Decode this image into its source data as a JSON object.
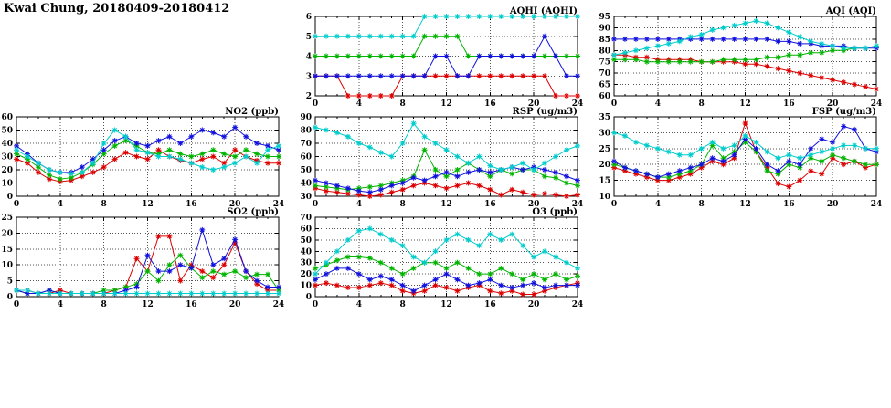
{
  "title": "Kwai Chung, 20180409-20180412",
  "x_interval_hours": 1,
  "chart_data": [
    {
      "type": "line",
      "title": "AQHI (AQHI)",
      "xlabel": "",
      "ylabel": "",
      "xlim": [
        0,
        24
      ],
      "xticks": [
        0,
        4,
        8,
        12,
        16,
        20,
        24
      ],
      "ylim": [
        2,
        6
      ],
      "yticks": [
        2,
        3,
        4,
        5,
        6
      ],
      "grid": true,
      "legend": "none",
      "position": {
        "row": 0,
        "col": 1
      },
      "series": [
        {
          "name": "red",
          "color": "#dd0000",
          "values": [
            3,
            3,
            3,
            2,
            2,
            2,
            2,
            2,
            3,
            3,
            3,
            3,
            3,
            3,
            3,
            3,
            3,
            3,
            3,
            3,
            3,
            3,
            2,
            2,
            2
          ]
        },
        {
          "name": "green",
          "color": "#00b400",
          "values": [
            4,
            4,
            4,
            4,
            4,
            4,
            4,
            4,
            4,
            4,
            5,
            5,
            5,
            5,
            4,
            4,
            4,
            4,
            4,
            4,
            4,
            4,
            4,
            4,
            4
          ]
        },
        {
          "name": "blue",
          "color": "#1111dd",
          "values": [
            3,
            3,
            3,
            3,
            3,
            3,
            3,
            3,
            3,
            3,
            3,
            4,
            4,
            3,
            3,
            4,
            4,
            4,
            4,
            4,
            4,
            5,
            4,
            3,
            3
          ]
        },
        {
          "name": "cyan",
          "color": "#00cccc",
          "values": [
            5,
            5,
            5,
            5,
            5,
            5,
            5,
            5,
            5,
            5,
            6,
            6,
            6,
            6,
            6,
            6,
            6,
            6,
            6,
            6,
            6,
            6,
            6,
            6,
            6
          ]
        }
      ]
    },
    {
      "type": "line",
      "title": "AQI (AQI)",
      "xlabel": "",
      "ylabel": "",
      "xlim": [
        0,
        24
      ],
      "xticks": [
        0,
        4,
        8,
        12,
        16,
        20,
        24
      ],
      "ylim": [
        60,
        95
      ],
      "yticks": [
        60,
        65,
        70,
        75,
        80,
        85,
        90,
        95
      ],
      "grid": true,
      "legend": "none",
      "position": {
        "row": 0,
        "col": 2
      },
      "series": [
        {
          "name": "red",
          "color": "#dd0000",
          "values": [
            78,
            78,
            77,
            77,
            76,
            76,
            76,
            76,
            75,
            75,
            75,
            75,
            74,
            74,
            73,
            72,
            71,
            70,
            69,
            68,
            67,
            66,
            65,
            64,
            63
          ]
        },
        {
          "name": "green",
          "color": "#00b400",
          "values": [
            76,
            76,
            76,
            75,
            75,
            75,
            75,
            75,
            75,
            75,
            76,
            76,
            76,
            76,
            77,
            77,
            78,
            78,
            79,
            79,
            80,
            80,
            81,
            81,
            82
          ]
        },
        {
          "name": "blue",
          "color": "#1111dd",
          "values": [
            85,
            85,
            85,
            85,
            85,
            85,
            85,
            85,
            85,
            85,
            85,
            85,
            85,
            85,
            85,
            84,
            84,
            83,
            83,
            82,
            82,
            82,
            81,
            81,
            81
          ]
        },
        {
          "name": "cyan",
          "color": "#00cccc",
          "values": [
            78,
            79,
            80,
            81,
            82,
            83,
            84,
            86,
            87,
            89,
            90,
            91,
            92,
            93,
            92,
            90,
            88,
            86,
            84,
            83,
            82,
            81,
            81,
            81,
            82
          ]
        }
      ]
    },
    {
      "type": "line",
      "title": "NO2 (ppb)",
      "xlabel": "",
      "ylabel": "",
      "xlim": [
        0,
        24
      ],
      "xticks": [
        0,
        4,
        8,
        12,
        16,
        20,
        24
      ],
      "ylim": [
        0,
        60
      ],
      "yticks": [
        0,
        10,
        20,
        30,
        40,
        50,
        60
      ],
      "grid": true,
      "legend": "none",
      "position": {
        "row": 1,
        "col": 0
      },
      "series": [
        {
          "name": "red",
          "color": "#dd0000",
          "values": [
            28,
            25,
            18,
            13,
            11,
            12,
            15,
            18,
            22,
            28,
            33,
            30,
            28,
            35,
            30,
            27,
            25,
            28,
            30,
            25,
            35,
            30,
            27,
            25,
            25
          ]
        },
        {
          "name": "green",
          "color": "#00b400",
          "values": [
            32,
            28,
            22,
            16,
            13,
            14,
            18,
            24,
            32,
            38,
            42,
            38,
            33,
            32,
            35,
            32,
            30,
            32,
            35,
            32,
            30,
            35,
            32,
            30,
            30
          ]
        },
        {
          "name": "blue",
          "color": "#1111dd",
          "values": [
            38,
            32,
            25,
            20,
            18,
            18,
            22,
            28,
            35,
            42,
            45,
            40,
            38,
            42,
            45,
            40,
            45,
            50,
            48,
            45,
            52,
            45,
            40,
            38,
            35
          ]
        },
        {
          "name": "cyan",
          "color": "#00cccc",
          "values": [
            35,
            30,
            25,
            20,
            18,
            17,
            18,
            25,
            40,
            50,
            45,
            35,
            33,
            30,
            30,
            28,
            25,
            22,
            20,
            22,
            25,
            30,
            25,
            35,
            38
          ]
        }
      ]
    },
    {
      "type": "line",
      "title": "RSP (ug/m3)",
      "xlabel": "",
      "ylabel": "",
      "xlim": [
        0,
        24
      ],
      "xticks": [
        0,
        4,
        8,
        12,
        16,
        20,
        24
      ],
      "ylim": [
        30,
        90
      ],
      "yticks": [
        30,
        40,
        50,
        60,
        70,
        80,
        90
      ],
      "grid": true,
      "legend": "none",
      "position": {
        "row": 1,
        "col": 1
      },
      "series": [
        {
          "name": "red",
          "color": "#dd0000",
          "values": [
            36,
            34,
            33,
            32,
            31,
            30,
            31,
            33,
            35,
            38,
            40,
            38,
            36,
            38,
            40,
            38,
            35,
            31,
            35,
            33,
            31,
            32,
            31,
            30,
            31
          ]
        },
        {
          "name": "green",
          "color": "#00b400",
          "values": [
            38,
            37,
            36,
            35,
            36,
            37,
            38,
            40,
            42,
            45,
            65,
            50,
            45,
            50,
            55,
            50,
            45,
            50,
            47,
            50,
            50,
            45,
            44,
            40,
            38
          ]
        },
        {
          "name": "blue",
          "color": "#1111dd",
          "values": [
            42,
            40,
            38,
            36,
            34,
            33,
            35,
            38,
            40,
            44,
            42,
            45,
            48,
            45,
            48,
            50,
            48,
            50,
            52,
            50,
            52,
            50,
            48,
            45,
            42
          ]
        },
        {
          "name": "cyan",
          "color": "#00cccc",
          "values": [
            82,
            80,
            78,
            75,
            70,
            67,
            63,
            60,
            70,
            85,
            75,
            70,
            65,
            60,
            55,
            60,
            53,
            50,
            52,
            55,
            50,
            55,
            60,
            65,
            68
          ]
        }
      ]
    },
    {
      "type": "line",
      "title": "FSP (ug/m3)",
      "xlabel": "",
      "ylabel": "",
      "xlim": [
        0,
        24
      ],
      "xticks": [
        0,
        4,
        8,
        12,
        16,
        20,
        24
      ],
      "ylim": [
        10,
        35
      ],
      "yticks": [
        10,
        15,
        20,
        25,
        30,
        35
      ],
      "grid": true,
      "legend": "none",
      "position": {
        "row": 1,
        "col": 2
      },
      "series": [
        {
          "name": "red",
          "color": "#dd0000",
          "values": [
            19,
            18,
            17,
            16,
            15,
            15,
            16,
            17,
            19,
            21,
            20,
            22,
            33,
            24,
            19,
            14,
            13,
            15,
            18,
            17,
            22,
            20,
            21,
            19,
            20
          ]
        },
        {
          "name": "green",
          "color": "#00b400",
          "values": [
            20,
            19,
            18,
            17,
            16,
            16,
            17,
            18,
            20,
            26,
            22,
            24,
            27,
            24,
            18,
            17,
            20,
            19,
            22,
            21,
            23,
            22,
            21,
            20,
            20
          ]
        },
        {
          "name": "blue",
          "color": "#1111dd",
          "values": [
            21,
            19,
            18,
            17,
            16,
            17,
            18,
            19,
            20,
            22,
            21,
            23,
            28,
            25,
            20,
            18,
            21,
            20,
            25,
            28,
            27,
            32,
            31,
            25,
            24
          ]
        },
        {
          "name": "cyan",
          "color": "#00cccc",
          "values": [
            30,
            29,
            27,
            26,
            25,
            24,
            23,
            23,
            25,
            27,
            25,
            26,
            29,
            27,
            24,
            22,
            23,
            22,
            23,
            24,
            25,
            26,
            26,
            25,
            25
          ]
        }
      ]
    },
    {
      "type": "line",
      "title": "SO2 (ppb)",
      "xlabel": "",
      "ylabel": "",
      "xlim": [
        0,
        24
      ],
      "xticks": [
        0,
        4,
        8,
        12,
        16,
        20,
        24
      ],
      "ylim": [
        0,
        25
      ],
      "yticks": [
        0,
        5,
        10,
        15,
        20,
        25
      ],
      "grid": true,
      "legend": "none",
      "position": {
        "row": 2,
        "col": 0
      },
      "series": [
        {
          "name": "red",
          "color": "#dd0000",
          "values": [
            2,
            2,
            1,
            1,
            2,
            1,
            1,
            1,
            1,
            2,
            3,
            12,
            8,
            19,
            19,
            5,
            10,
            8,
            6,
            10,
            17,
            8,
            4,
            2,
            2
          ]
        },
        {
          "name": "green",
          "color": "#00b400",
          "values": [
            2,
            1,
            1,
            2,
            1,
            1,
            1,
            1,
            2,
            2,
            3,
            4,
            8,
            5,
            10,
            13,
            9,
            6,
            8,
            7,
            8,
            6,
            7,
            7,
            2
          ]
        },
        {
          "name": "blue",
          "color": "#1111dd",
          "values": [
            2,
            1,
            1,
            2,
            1,
            1,
            1,
            1,
            1,
            1,
            2,
            3,
            13,
            8,
            8,
            10,
            9,
            21,
            10,
            12,
            18,
            8,
            5,
            3,
            3
          ]
        },
        {
          "name": "cyan",
          "color": "#00cccc",
          "values": [
            2,
            2,
            1,
            1,
            1,
            1,
            1,
            1,
            1,
            1,
            1,
            1,
            1,
            1,
            1,
            1,
            1,
            1,
            1,
            1,
            1,
            1,
            1,
            1,
            1
          ]
        }
      ]
    },
    {
      "type": "line",
      "title": "O3 (ppb)",
      "xlabel": "",
      "ylabel": "",
      "xlim": [
        0,
        24
      ],
      "xticks": [
        0,
        4,
        8,
        12,
        16,
        20,
        24
      ],
      "ylim": [
        0,
        70
      ],
      "yticks": [
        0,
        10,
        20,
        30,
        40,
        50,
        60,
        70
      ],
      "grid": true,
      "legend": "none",
      "position": {
        "row": 2,
        "col": 1
      },
      "series": [
        {
          "name": "red",
          "color": "#dd0000",
          "values": [
            10,
            12,
            10,
            8,
            8,
            10,
            12,
            10,
            5,
            3,
            5,
            10,
            8,
            5,
            8,
            10,
            5,
            3,
            5,
            2,
            2,
            5,
            8,
            10,
            12
          ]
        },
        {
          "name": "green",
          "color": "#00b400",
          "values": [
            25,
            28,
            32,
            35,
            35,
            34,
            30,
            25,
            20,
            25,
            30,
            30,
            25,
            30,
            25,
            20,
            20,
            25,
            20,
            15,
            20,
            15,
            20,
            15,
            18
          ]
        },
        {
          "name": "blue",
          "color": "#1111dd",
          "values": [
            15,
            20,
            25,
            25,
            20,
            15,
            18,
            15,
            10,
            5,
            10,
            15,
            20,
            15,
            10,
            12,
            15,
            10,
            8,
            10,
            12,
            8,
            10,
            10,
            10
          ]
        },
        {
          "name": "cyan",
          "color": "#00cccc",
          "values": [
            20,
            30,
            40,
            50,
            58,
            60,
            55,
            50,
            45,
            35,
            30,
            40,
            50,
            55,
            50,
            45,
            55,
            50,
            55,
            45,
            35,
            40,
            35,
            30,
            25
          ]
        }
      ]
    }
  ]
}
